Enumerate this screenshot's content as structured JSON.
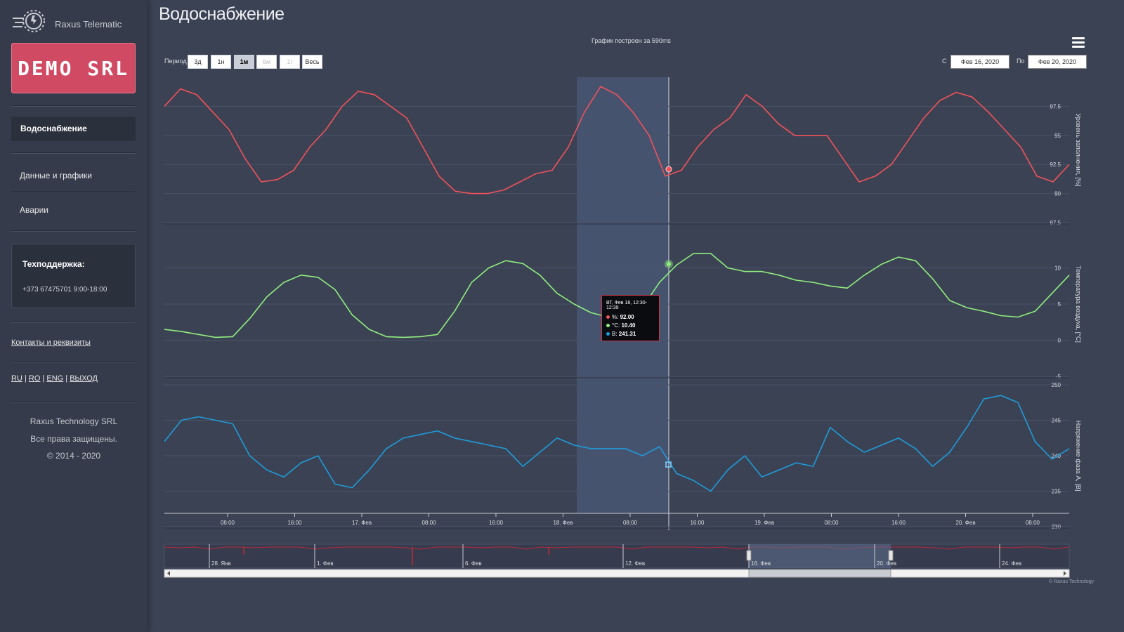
{
  "brand": {
    "name": "Raxus Telematic",
    "company_badge": "DEMO SRL"
  },
  "nav": {
    "active": "Водоснабжение",
    "items": [
      "Данные и графики",
      "Аварии"
    ]
  },
  "support": {
    "title": "Техподдержка:",
    "phone": "+373 67475701 9:00-18:00"
  },
  "contacts_link": "Контакты и реквизиты",
  "languages": [
    "RU",
    "RO",
    "ENG",
    "ВЫХОД"
  ],
  "footer": {
    "company": "Raxus Technology SRL",
    "rights": "Все права защищены.",
    "years": "© 2014 - 2020"
  },
  "page": {
    "title": "Водоснабжение",
    "build_note": "График построен за 590ms"
  },
  "toolbar": {
    "period_label": "Период",
    "periods": [
      "3д",
      "1н",
      "1м",
      "6м",
      "1г",
      "Весь"
    ],
    "active_period": "1м",
    "from_label": "С",
    "from_value": "Фев 16, 2020",
    "to_label": "По",
    "to_value": "Фев 20, 2020"
  },
  "tooltip": {
    "header": "ВТ, Фев 18, 12:30-12:39",
    "rows": [
      {
        "label": "%:",
        "value": "92.00",
        "color": "#f0525a"
      },
      {
        "label": "°C:",
        "value": "10.40",
        "color": "#90ee7e"
      },
      {
        "label": "В:",
        "value": "241.31",
        "color": "#1f9bd9"
      }
    ]
  },
  "credit": "© Raxus Technology",
  "colors": {
    "level": "#f0525a",
    "temp": "#90ee7e",
    "voltage": "#1f9bd9",
    "accent": "#d14a63"
  },
  "chart_data": {
    "type": "line",
    "x_start": "Фев 16, 2020",
    "x_end": "Фев 20, 2020",
    "x_ticks": [
      "08:00",
      "16:00",
      "17. Фев",
      "08:00",
      "16:00",
      "18. Фев",
      "08:00",
      "16:00",
      "19. Фев",
      "08:00",
      "16:00",
      "20. Фев",
      "08:00"
    ],
    "highlight_band": "Фев 18",
    "crosshair": "Фев 18, 12:30",
    "panels": [
      {
        "name": "Уровень заполнения, [%]",
        "ylim": [
          87.5,
          100
        ],
        "ticks": [
          "87.5",
          "90",
          "92.5",
          "95",
          "97.5"
        ],
        "color": "#f0525a",
        "values": [
          97.5,
          99.0,
          98.5,
          97.0,
          95.5,
          93.0,
          91.0,
          91.2,
          92.0,
          94.0,
          95.5,
          97.5,
          98.8,
          98.5,
          97.5,
          96.5,
          94.0,
          91.5,
          90.2,
          90.0,
          90.0,
          90.3,
          91.0,
          91.7,
          92.0,
          94.0,
          97.0,
          99.2,
          98.5,
          97.0,
          95.0,
          91.5,
          92.0,
          94.0,
          95.5,
          96.5,
          98.5,
          97.5,
          96.0,
          95.0,
          95.0,
          95.0,
          93.0,
          91.0,
          91.5,
          92.5,
          94.5,
          96.5,
          98.0,
          98.7,
          98.3,
          97.0,
          95.5,
          94.0,
          91.5,
          91.0,
          92.5
        ]
      },
      {
        "name": "Температура воздуха, [°C]",
        "ylim": [
          -5,
          15
        ],
        "ticks": [
          "-5",
          "0",
          "5",
          "10"
        ],
        "color": "#90ee7e",
        "values": [
          1.5,
          1.2,
          0.8,
          0.4,
          0.5,
          3.0,
          6.0,
          8.0,
          9.0,
          8.7,
          7.0,
          3.5,
          1.5,
          0.5,
          0.4,
          0.5,
          0.8,
          4.0,
          8.0,
          10.0,
          11.0,
          10.6,
          9.0,
          6.5,
          5.0,
          3.8,
          3.2,
          2.5,
          4.5,
          8.0,
          10.4,
          12.0,
          12.0,
          10.0,
          9.5,
          9.5,
          9.0,
          8.3,
          8.0,
          7.5,
          7.2,
          9.0,
          10.5,
          11.5,
          11.0,
          8.5,
          5.5,
          4.5,
          4.0,
          3.4,
          3.2,
          4.0,
          6.5,
          9.0
        ]
      },
      {
        "name": "Напряжение фаза A, [В]",
        "ylim": [
          230,
          250
        ],
        "ticks": [
          "230",
          "235",
          "240",
          "245",
          "250"
        ],
        "color": "#1f9bd9",
        "values": [
          242,
          245,
          245.5,
          245,
          244.5,
          240,
          238,
          237,
          239,
          240,
          236,
          235.5,
          238,
          241,
          242.5,
          243,
          243.5,
          242.5,
          242,
          241.5,
          241,
          238.5,
          240.5,
          242.5,
          241.5,
          241,
          241,
          241,
          240,
          241.3,
          237.5,
          236.5,
          235,
          238,
          240,
          237,
          238,
          239,
          238.5,
          244,
          242,
          240.5,
          241.5,
          242.5,
          241,
          238.5,
          240.5,
          244,
          248,
          248.5,
          247.5,
          242,
          239.5,
          241
        ]
      }
    ],
    "navigator": {
      "x_ticks": [
        "28. Янв",
        "1. Фев",
        "6. Фев",
        "12. Фев",
        "16. Фев",
        "20. Фев",
        "24. Фев"
      ]
    }
  }
}
